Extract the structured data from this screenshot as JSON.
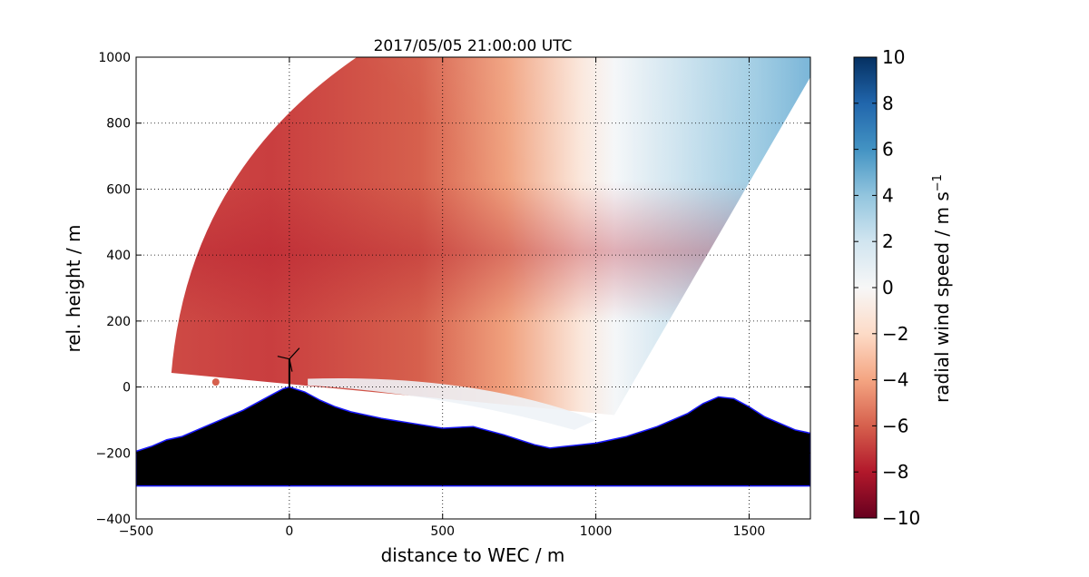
{
  "chart_data": {
    "type": "heatmap",
    "title": "2017/05/05 21:00:00 UTC",
    "xlabel": "distance to WEC / m",
    "ylabel": "rel. height / m",
    "xlim": [
      -500,
      1700
    ],
    "ylim": [
      -400,
      1000
    ],
    "xticks": [
      -500,
      0,
      500,
      1000,
      1500
    ],
    "yticks": [
      -400,
      -200,
      0,
      200,
      400,
      600,
      800,
      1000
    ],
    "xtick_labels": [
      "−500",
      "0",
      "500",
      "1000",
      "1500"
    ],
    "ytick_labels": [
      "−400",
      "−200",
      "0",
      "200",
      "400",
      "600",
      "800",
      "1000"
    ],
    "grid": true,
    "colormap": "RdBu",
    "colorbar": {
      "label": "radial wind speed / m s",
      "label_superscript": "−1",
      "range": [
        -10,
        10
      ],
      "ticks": [
        -10,
        -8,
        -6,
        -4,
        -2,
        0,
        2,
        4,
        6,
        8,
        10
      ],
      "tick_labels": [
        "−10",
        "−8",
        "−6",
        "−4",
        "−2",
        "0",
        "2",
        "4",
        "6",
        "8",
        "10"
      ]
    },
    "scan_sector": {
      "lidar_position": [
        -385,
        43
      ],
      "range_max_m": 1970,
      "elevation_deg_min": 0,
      "elevation_deg_max": 34.5,
      "speed_samples": [
        {
          "distance": -350,
          "height": 100,
          "speed": -6.5
        },
        {
          "distance": -300,
          "height": 400,
          "speed": -8.2
        },
        {
          "distance": -100,
          "height": 420,
          "speed": -8.0
        },
        {
          "distance": 0,
          "height": 800,
          "speed": -6.5
        },
        {
          "distance": 250,
          "height": 400,
          "speed": -6.0
        },
        {
          "distance": 500,
          "height": 300,
          "speed": -5.0
        },
        {
          "distance": 700,
          "height": 300,
          "speed": -3.5
        },
        {
          "distance": 900,
          "height": 300,
          "speed": -1.5
        },
        {
          "distance": 1100,
          "height": 400,
          "speed": 1.5
        },
        {
          "distance": 1300,
          "height": 500,
          "speed": 3.5
        },
        {
          "distance": 1600,
          "height": 800,
          "speed": 5.0
        },
        {
          "distance": 400,
          "height": 20,
          "speed": 0.5
        },
        {
          "distance": 700,
          "height": -70,
          "speed": 0.8
        }
      ]
    },
    "terrain_profile": {
      "base_height": -300,
      "points": [
        [
          -500,
          -195
        ],
        [
          -450,
          -180
        ],
        [
          -400,
          -160
        ],
        [
          -350,
          -150
        ],
        [
          -300,
          -130
        ],
        [
          -250,
          -110
        ],
        [
          -200,
          -90
        ],
        [
          -150,
          -70
        ],
        [
          -100,
          -45
        ],
        [
          -50,
          -20
        ],
        [
          -20,
          -5
        ],
        [
          0,
          0
        ],
        [
          50,
          -15
        ],
        [
          100,
          -40
        ],
        [
          150,
          -60
        ],
        [
          200,
          -75
        ],
        [
          300,
          -95
        ],
        [
          400,
          -110
        ],
        [
          500,
          -125
        ],
        [
          600,
          -120
        ],
        [
          700,
          -145
        ],
        [
          800,
          -175
        ],
        [
          850,
          -185
        ],
        [
          900,
          -180
        ],
        [
          1000,
          -170
        ],
        [
          1100,
          -150
        ],
        [
          1200,
          -120
        ],
        [
          1300,
          -80
        ],
        [
          1350,
          -50
        ],
        [
          1400,
          -30
        ],
        [
          1450,
          -35
        ],
        [
          1500,
          -60
        ],
        [
          1550,
          -90
        ],
        [
          1600,
          -110
        ],
        [
          1650,
          -130
        ],
        [
          1700,
          -140
        ]
      ]
    },
    "wind_turbine": {
      "distance": 0,
      "hub_height": 85
    }
  }
}
